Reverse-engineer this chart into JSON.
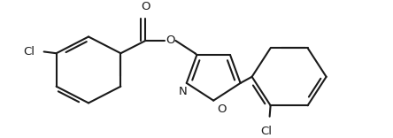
{
  "bg_color": "#ffffff",
  "line_color": "#1a1a1a",
  "line_width": 1.5,
  "font_size": 9.5,
  "figsize": [
    4.44,
    1.56
  ],
  "dpi": 100,
  "xlim": [
    0,
    444
  ],
  "ylim": [
    0,
    156
  ]
}
